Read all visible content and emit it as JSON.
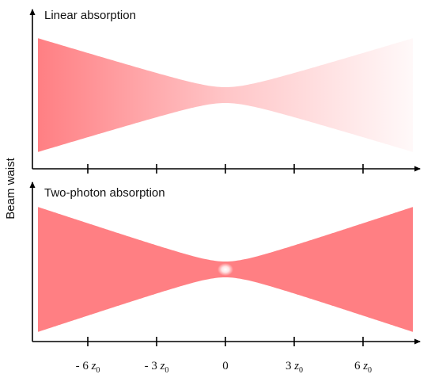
{
  "panels": {
    "top": {
      "title": "Linear absorption"
    },
    "bottom": {
      "title": "Two-photon absorption"
    }
  },
  "y_axis_label": "Beam waist",
  "x_ticks": [
    {
      "value": -6,
      "prefix": "- 6 ",
      "var": "z",
      "sub": "0"
    },
    {
      "value": -3,
      "prefix": "- 3 ",
      "var": "z",
      "sub": "0"
    },
    {
      "value": 0,
      "prefix": "0",
      "var": "",
      "sub": ""
    },
    {
      "value": 3,
      "prefix": "3 ",
      "var": "z",
      "sub": "0"
    },
    {
      "value": 6,
      "prefix": "6 ",
      "var": "z",
      "sub": "0"
    }
  ],
  "colors": {
    "beam": "#ff7f83",
    "axis": "#000000",
    "focus_glow": "#ffffff"
  }
}
